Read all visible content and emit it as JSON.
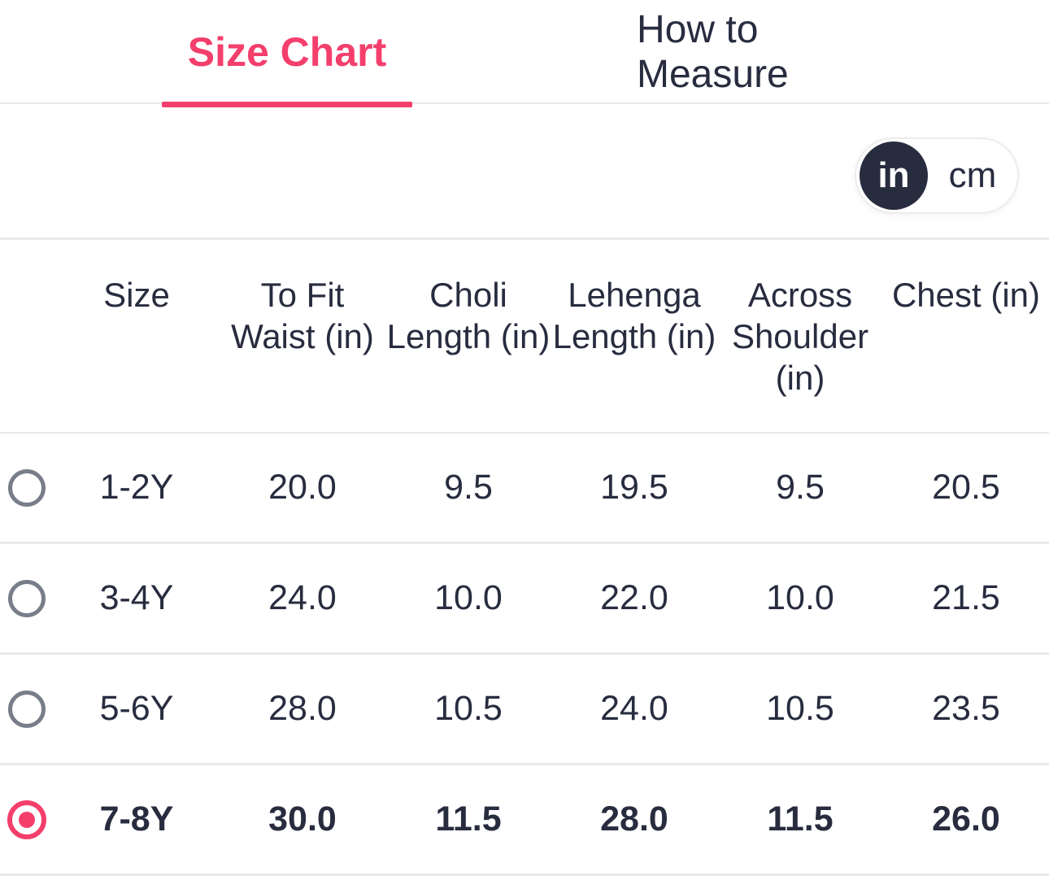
{
  "tabs": [
    {
      "label": "Size Chart",
      "active": true
    },
    {
      "label": "How to Measure",
      "active": false
    }
  ],
  "unit_toggle": {
    "options": [
      "in",
      "cm"
    ],
    "selected": "in"
  },
  "table": {
    "columns": [
      "Size",
      "To Fit Waist (in)",
      "Choli Length (in)",
      "Lehenga Length (in)",
      "Across Shoulder (in)",
      "Chest (in)"
    ],
    "rows": [
      {
        "size": "1-2Y",
        "values": [
          "20.0",
          "9.5",
          "19.5",
          "9.5",
          "20.5"
        ],
        "selected": false
      },
      {
        "size": "3-4Y",
        "values": [
          "24.0",
          "10.0",
          "22.0",
          "10.0",
          "21.5"
        ],
        "selected": false
      },
      {
        "size": "5-6Y",
        "values": [
          "28.0",
          "10.5",
          "24.0",
          "10.5",
          "23.5"
        ],
        "selected": false
      },
      {
        "size": "7-8Y",
        "values": [
          "30.0",
          "11.5",
          "28.0",
          "11.5",
          "26.0"
        ],
        "selected": true
      }
    ]
  },
  "colors": {
    "accent": "#f43f6c",
    "dark": "#282c3f",
    "divider": "#e9e9eb",
    "radio_gray": "#787d8a"
  }
}
